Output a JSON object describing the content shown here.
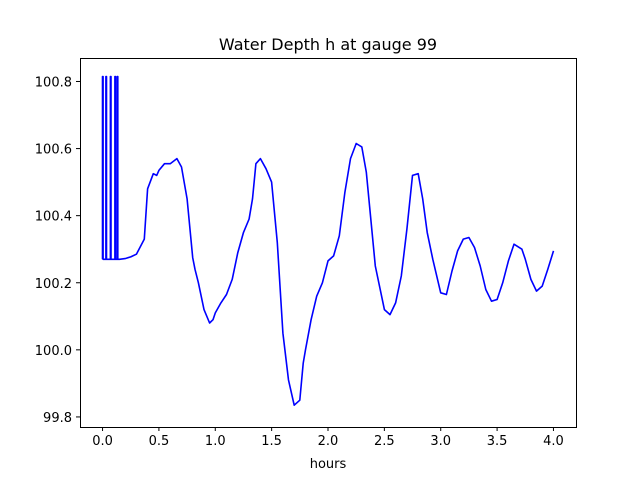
{
  "chart_data": {
    "type": "line",
    "title": "Water Depth h at gauge 99",
    "xlabel": "hours",
    "ylabel": "",
    "xlim": [
      -0.2,
      4.2
    ],
    "ylim": [
      99.77,
      100.87
    ],
    "xticks": [
      0.0,
      0.5,
      1.0,
      1.5,
      2.0,
      2.5,
      3.0,
      3.5,
      4.0
    ],
    "xtick_labels": [
      "0.0",
      "0.5",
      "1.0",
      "1.5",
      "2.0",
      "2.5",
      "3.0",
      "3.5",
      "4.0"
    ],
    "yticks": [
      99.8,
      100.0,
      100.2,
      100.4,
      100.6,
      100.8
    ],
    "ytick_labels": [
      "99.8",
      "100.0",
      "100.2",
      "100.4",
      "100.6",
      "100.8"
    ],
    "grid": false,
    "series": [
      {
        "color": "#0000ff",
        "x": [
          0.0,
          0.0,
          0.005,
          0.005,
          0.03,
          0.03,
          0.035,
          0.035,
          0.07,
          0.07,
          0.075,
          0.075,
          0.11,
          0.11,
          0.115,
          0.115,
          0.13,
          0.13,
          0.135,
          0.135,
          0.15,
          0.15,
          0.2,
          0.25,
          0.3,
          0.37,
          0.4,
          0.45,
          0.48,
          0.5,
          0.55,
          0.6,
          0.66,
          0.7,
          0.75,
          0.8,
          0.82,
          0.85,
          0.9,
          0.95,
          0.98,
          1.0,
          1.05,
          1.1,
          1.15,
          1.2,
          1.25,
          1.3,
          1.33,
          1.36,
          1.4,
          1.45,
          1.5,
          1.55,
          1.6,
          1.65,
          1.7,
          1.75,
          1.78,
          1.8,
          1.85,
          1.9,
          1.95,
          2.0,
          2.05,
          2.1,
          2.15,
          2.2,
          2.25,
          2.3,
          2.34,
          2.38,
          2.42,
          2.5,
          2.55,
          2.6,
          2.65,
          2.7,
          2.75,
          2.8,
          2.84,
          2.88,
          2.93,
          3.0,
          3.05,
          3.1,
          3.15,
          3.2,
          3.25,
          3.3,
          3.35,
          3.4,
          3.45,
          3.5,
          3.55,
          3.6,
          3.65,
          3.72,
          3.75,
          3.8,
          3.85,
          3.9,
          3.95,
          4.0
        ],
        "y": [
          100.27,
          100.815,
          100.815,
          100.27,
          100.27,
          100.815,
          100.815,
          100.27,
          100.27,
          100.815,
          100.815,
          100.27,
          100.27,
          100.815,
          100.815,
          100.27,
          100.27,
          100.815,
          100.815,
          100.27,
          100.27,
          100.27,
          100.272,
          100.277,
          100.285,
          100.33,
          100.48,
          100.525,
          100.52,
          100.535,
          100.555,
          100.555,
          100.57,
          100.545,
          100.45,
          100.275,
          100.24,
          100.2,
          100.12,
          100.08,
          100.09,
          100.11,
          100.14,
          100.165,
          100.21,
          100.29,
          100.35,
          100.39,
          100.45,
          100.555,
          100.57,
          100.54,
          100.5,
          100.32,
          100.05,
          99.91,
          99.835,
          99.85,
          99.96,
          100.0,
          100.09,
          100.16,
          100.2,
          100.265,
          100.28,
          100.34,
          100.47,
          100.57,
          100.615,
          100.605,
          100.53,
          100.39,
          100.25,
          100.12,
          100.105,
          100.14,
          100.22,
          100.36,
          100.52,
          100.525,
          100.45,
          100.35,
          100.27,
          100.17,
          100.165,
          100.235,
          100.295,
          100.33,
          100.335,
          100.305,
          100.25,
          100.18,
          100.145,
          100.15,
          100.2,
          100.265,
          100.315,
          100.3,
          100.27,
          100.21,
          100.175,
          100.19,
          100.24,
          100.295
        ]
      }
    ]
  }
}
